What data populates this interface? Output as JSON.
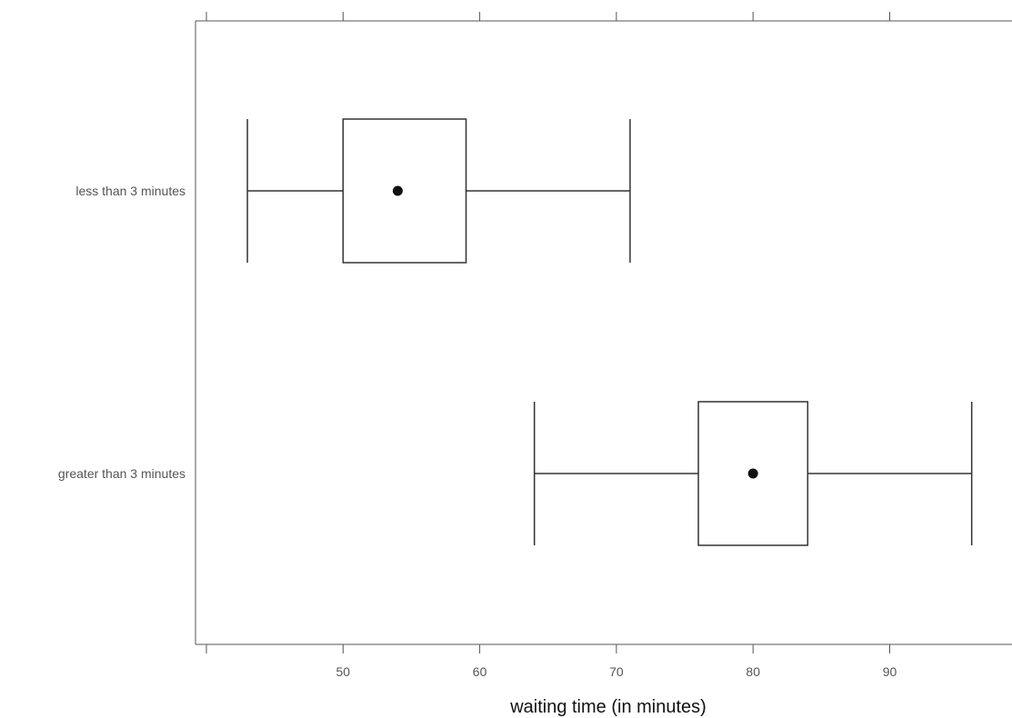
{
  "chart_data": {
    "type": "boxplot",
    "title": "",
    "xlabel": "waiting time (in minutes)",
    "ylabel": "",
    "xlim": [
      40,
      98
    ],
    "x_ticks": [
      40,
      50,
      60,
      70,
      80,
      90
    ],
    "x_tick_labels": [
      "",
      "50",
      "60",
      "70",
      "80",
      "90"
    ],
    "categories": [
      "less than 3 minutes",
      "greater than 3 minutes"
    ],
    "boxes": [
      {
        "category": "less than 3 minutes",
        "min": 43,
        "q1": 50,
        "median": 54,
        "q3": 59,
        "max": 71
      },
      {
        "category": "greater than 3 minutes",
        "min": 64,
        "q1": 76,
        "median": 80,
        "q3": 84,
        "max": 96
      }
    ],
    "grid": false,
    "median_marker": "dot",
    "colors": {
      "line": "#333333",
      "dot": "#111111",
      "axis": "#555555"
    }
  }
}
